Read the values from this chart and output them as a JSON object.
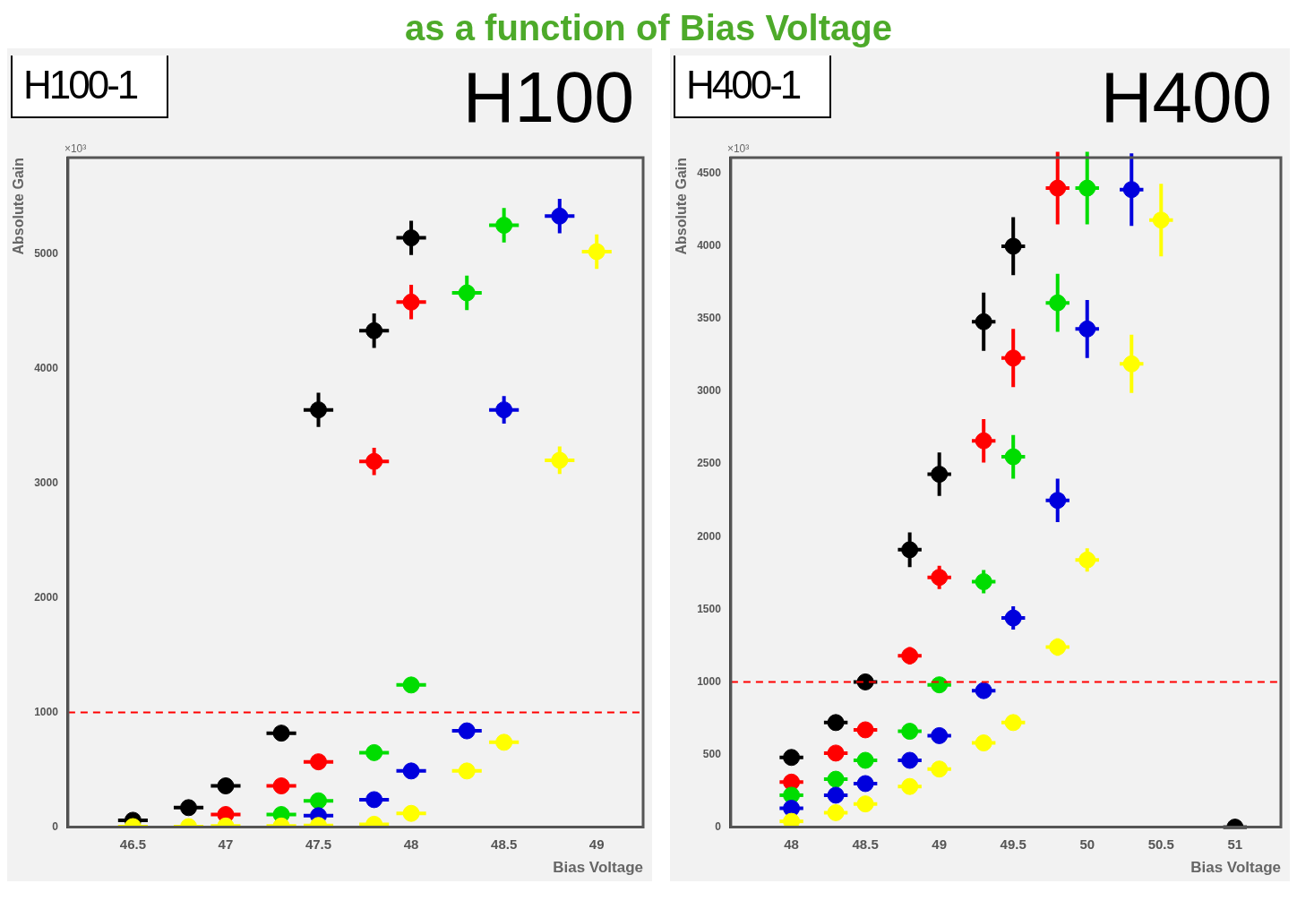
{
  "chart_data": [
    {
      "type": "scatter",
      "title": "H100",
      "subtitle": "H100-1",
      "xlabel": "Bias Voltage",
      "ylabel": "Absolute Gain",
      "annotations": [
        "×10³",
        "as a function of Bias Voltage"
      ],
      "xlim": [
        46.15,
        49.25
      ],
      "xticks": [
        46.5,
        47,
        47.5,
        48,
        48.5,
        49
      ],
      "ylim": [
        0,
        5840
      ],
      "yticks": [
        0,
        1000,
        2000,
        3000,
        4000,
        5000
      ],
      "grid": false,
      "legend": false,
      "marker": "circle",
      "ref_lines": [
        {
          "axis": "y",
          "value": 1000,
          "color": "#ff0000",
          "line_style": "dashed"
        }
      ],
      "series": [
        {
          "color": "#000000",
          "x": [
            46.5,
            46.8,
            47.0,
            47.3,
            47.5,
            47.8,
            48.0
          ],
          "values": [
            60,
            170,
            360,
            820,
            3640,
            4330,
            5140
          ],
          "errors": [
            null,
            40,
            40,
            40,
            150,
            150,
            150
          ],
          "xerrors": [
            0.08,
            0.08,
            0.08,
            0.08,
            0.08,
            0.08,
            0.08
          ]
        },
        {
          "color": "#ff0000",
          "x": [
            47.0,
            47.3,
            47.5,
            47.8,
            48.0
          ],
          "values": [
            110,
            360,
            570,
            3190,
            4580
          ],
          "errors": [
            null,
            40,
            40,
            120,
            150
          ],
          "xerrors": [
            0.08,
            0.08,
            0.08,
            0.08,
            0.08
          ]
        },
        {
          "color": "#00dd00",
          "x": [
            47.3,
            47.5,
            47.8,
            48.0,
            48.3,
            48.5
          ],
          "values": [
            110,
            230,
            650,
            1240,
            4660,
            5250
          ],
          "errors": [
            null,
            40,
            40,
            50,
            150,
            150
          ],
          "xerrors": [
            0.08,
            0.08,
            0.08,
            0.08,
            0.08,
            0.08
          ]
        },
        {
          "color": "#0000dd",
          "x": [
            47.5,
            47.8,
            48.0,
            48.3,
            48.5,
            48.8
          ],
          "values": [
            100,
            240,
            490,
            840,
            3640,
            5330
          ],
          "errors": [
            null,
            40,
            40,
            40,
            120,
            150
          ],
          "xerrors": [
            0.08,
            0.08,
            0.08,
            0.08,
            0.08,
            0.08
          ]
        },
        {
          "color": "#ffff00",
          "x": [
            46.5,
            46.8,
            47.0,
            47.3,
            47.5,
            47.8,
            48.0,
            48.3,
            48.5,
            48.8,
            49.0
          ],
          "values": [
            5,
            5,
            10,
            10,
            15,
            25,
            120,
            490,
            740,
            3200,
            5020
          ],
          "errors": [
            null,
            null,
            null,
            null,
            null,
            null,
            40,
            40,
            40,
            120,
            150
          ],
          "xerrors": [
            0.08,
            0.08,
            0.08,
            0.08,
            0.08,
            0.08,
            0.08,
            0.08,
            0.08,
            0.08,
            0.08
          ]
        }
      ]
    },
    {
      "type": "scatter",
      "title": "H400",
      "subtitle": "H400-1",
      "xlabel": "Bias Voltage",
      "ylabel": "Absolute Gain",
      "annotations": [
        "×10³"
      ],
      "xlim": [
        47.59,
        51.31
      ],
      "xticks": [
        48,
        48.5,
        49,
        49.5,
        50,
        50.5,
        51
      ],
      "ylim": [
        0,
        4610
      ],
      "yticks": [
        0,
        500,
        1000,
        1500,
        2000,
        2500,
        3000,
        3500,
        4000,
        4500
      ],
      "grid": false,
      "legend": false,
      "marker": "circle",
      "ref_lines": [
        {
          "axis": "y",
          "value": 1000,
          "color": "#ff0000",
          "line_style": "dashed"
        }
      ],
      "series": [
        {
          "color": "#000000",
          "x": [
            48.0,
            48.3,
            48.5,
            48.8,
            49.0,
            49.3,
            49.5,
            51.0
          ],
          "values": [
            480,
            720,
            1000,
            1910,
            2430,
            3480,
            4000,
            0
          ],
          "errors": [
            40,
            50,
            50,
            120,
            150,
            200,
            200,
            null
          ],
          "xerrors": [
            0.08,
            0.08,
            0.08,
            0.08,
            0.08,
            0.08,
            0.08,
            0.08
          ]
        },
        {
          "color": "#ff0000",
          "x": [
            48.0,
            48.3,
            48.5,
            48.8,
            49.0,
            49.3,
            49.5,
            49.8
          ],
          "values": [
            310,
            510,
            670,
            1180,
            1720,
            2660,
            3230,
            4400
          ],
          "errors": [
            40,
            40,
            40,
            60,
            80,
            150,
            200,
            250
          ],
          "xerrors": [
            0.08,
            0.08,
            0.08,
            0.08,
            0.08,
            0.08,
            0.08,
            0.08
          ]
        },
        {
          "color": "#00dd00",
          "x": [
            48.0,
            48.3,
            48.5,
            48.8,
            49.0,
            49.3,
            49.5,
            49.8,
            50.0
          ],
          "values": [
            220,
            330,
            460,
            660,
            980,
            1690,
            2550,
            3610,
            4400
          ],
          "errors": [
            null,
            40,
            40,
            40,
            50,
            80,
            150,
            200,
            250
          ],
          "xerrors": [
            0.08,
            0.08,
            0.08,
            0.08,
            0.08,
            0.08,
            0.08,
            0.08,
            0.08
          ]
        },
        {
          "color": "#0000dd",
          "x": [
            48.0,
            48.3,
            48.5,
            48.8,
            49.0,
            49.3,
            49.5,
            49.8,
            50.0,
            50.3
          ],
          "values": [
            130,
            220,
            300,
            460,
            630,
            940,
            1440,
            2250,
            3430,
            4390
          ],
          "errors": [
            null,
            40,
            40,
            40,
            40,
            50,
            80,
            150,
            200,
            250
          ],
          "xerrors": [
            0.08,
            0.08,
            0.08,
            0.08,
            0.08,
            0.08,
            0.08,
            0.08,
            0.08,
            0.08
          ]
        },
        {
          "color": "#ffff00",
          "x": [
            48.0,
            48.3,
            48.5,
            48.8,
            49.0,
            49.3,
            49.5,
            49.8,
            50.0,
            50.3,
            50.5
          ],
          "values": [
            40,
            100,
            160,
            280,
            400,
            580,
            720,
            1240,
            1840,
            3190,
            4180
          ],
          "errors": [
            null,
            40,
            40,
            40,
            40,
            40,
            40,
            60,
            80,
            200,
            250
          ],
          "xerrors": [
            0.08,
            0.08,
            0.08,
            0.08,
            0.08,
            0.08,
            0.08,
            0.08,
            0.08,
            0.08,
            0.08
          ]
        }
      ]
    }
  ]
}
